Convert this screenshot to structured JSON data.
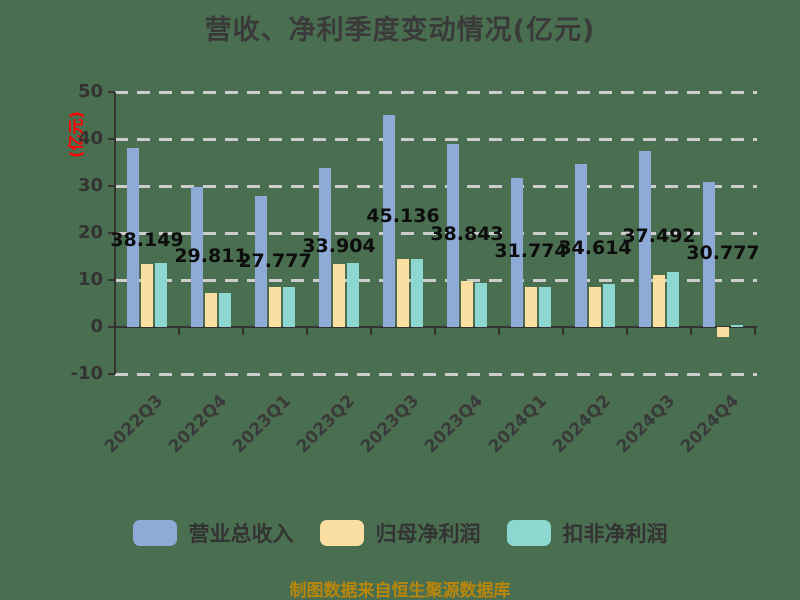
{
  "title": "营收、净利季度变动情况(亿元)",
  "y_axis": {
    "unit_label": "(亿元)",
    "ticks": [
      50,
      40,
      30,
      20,
      10,
      0,
      -10
    ],
    "min": -10,
    "max": 50
  },
  "chart_data": {
    "type": "bar",
    "title": "营收、净利季度变动情况(亿元)",
    "categories": [
      "2022Q3",
      "2022Q4",
      "2023Q1",
      "2023Q2",
      "2023Q3",
      "2023Q4",
      "2024Q1",
      "2024Q2",
      "2024Q3",
      "2024Q4"
    ],
    "series": [
      {
        "name": "营业总收入",
        "color": "#8EABD8",
        "values": [
          38.149,
          29.811,
          27.777,
          33.904,
          45.136,
          38.843,
          31.774,
          34.614,
          37.492,
          30.777
        ]
      },
      {
        "name": "归母净利润",
        "color": "#FBDFA2",
        "values": [
          13.5,
          7.2,
          8.6,
          13.4,
          14.5,
          9.7,
          8.6,
          8.6,
          11.1,
          -2.1
        ]
      },
      {
        "name": "扣非净利润",
        "color": "#8CD7D0",
        "values": [
          13.6,
          7.2,
          8.6,
          13.6,
          14.4,
          9.4,
          8.6,
          9.1,
          11.6,
          0.0
        ]
      }
    ],
    "data_labels": [
      "38.149",
      "29.811",
      "27.777",
      "33.904",
      "45.136",
      "38.843",
      "31.774",
      "34.614",
      "37.492",
      "30.777"
    ],
    "ylim": [
      -10,
      50
    ],
    "grid": "dashed",
    "legend_position": "bottom"
  },
  "footer": "制图数据来自恒生聚源数据库",
  "colors": {
    "background": "#4A6F50",
    "revenue_bar": "#8EABD8",
    "net_profit_bar": "#FBDFA2",
    "non_gaap_bar": "#8CD7D0",
    "gridline": "#CDCDCD",
    "axis": "#333333",
    "title_text": "#3A3A3A",
    "unit_label_text": "#FF0000",
    "footer_text": "#B8860B"
  }
}
